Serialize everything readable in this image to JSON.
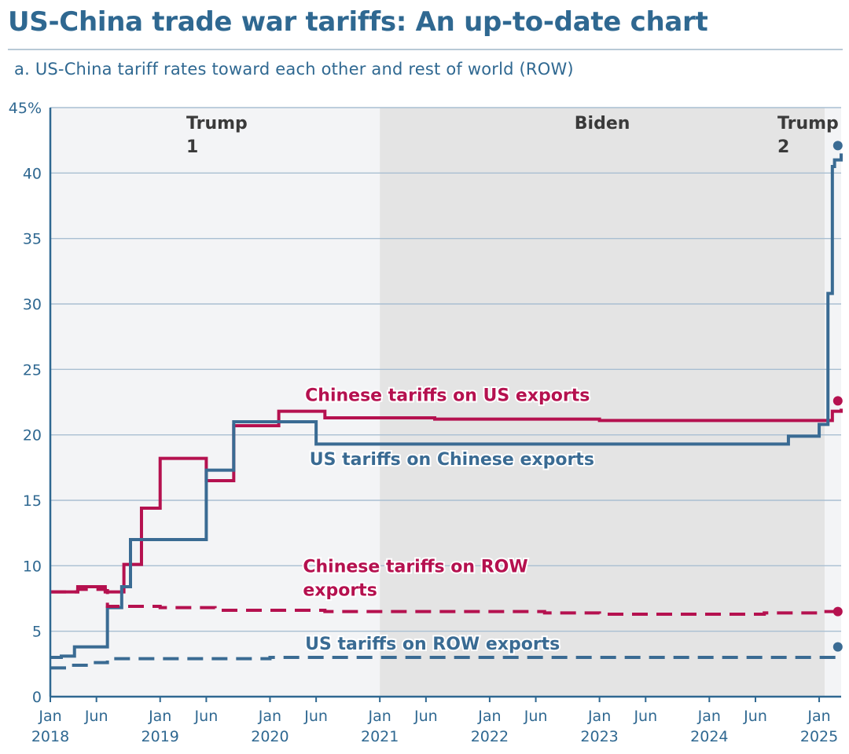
{
  "header": {
    "title": "US-China trade war tariffs: An up-to-date chart",
    "subtitle": "a. US-China tariff rates toward each other and rest of world (ROW)"
  },
  "chart_data": {
    "type": "line",
    "title": "US-China trade war tariffs: An up-to-date chart",
    "subtitle": "a. US-China tariff rates toward each other and rest of world (ROW)",
    "xlabel": "",
    "ylabel": "",
    "x_unit": "years since Jan 2018",
    "xlim": [
      0,
      7.2
    ],
    "ylim": [
      0,
      45
    ],
    "y_ticks": [
      {
        "value": 0,
        "label": "0"
      },
      {
        "value": 5,
        "label": "5"
      },
      {
        "value": 10,
        "label": "10"
      },
      {
        "value": 15,
        "label": "15"
      },
      {
        "value": 20,
        "label": "20"
      },
      {
        "value": 25,
        "label": "25"
      },
      {
        "value": 30,
        "label": "30"
      },
      {
        "value": 35,
        "label": "35"
      },
      {
        "value": 40,
        "label": "40"
      },
      {
        "value": 45,
        "label": "45%"
      }
    ],
    "x_ticks": [
      {
        "value": 0,
        "month": "Jan",
        "year": "2018"
      },
      {
        "value": 0.42,
        "month": "Jun",
        "year": ""
      },
      {
        "value": 1,
        "month": "Jan",
        "year": "2019"
      },
      {
        "value": 1.42,
        "month": "Jun",
        "year": ""
      },
      {
        "value": 2,
        "month": "Jan",
        "year": "2020"
      },
      {
        "value": 2.42,
        "month": "Jun",
        "year": ""
      },
      {
        "value": 3,
        "month": "Jan",
        "year": "2021"
      },
      {
        "value": 3.42,
        "month": "Jun",
        "year": ""
      },
      {
        "value": 4,
        "month": "Jan",
        "year": "2022"
      },
      {
        "value": 4.42,
        "month": "Jun",
        "year": ""
      },
      {
        "value": 5,
        "month": "Jan",
        "year": "2023"
      },
      {
        "value": 5.42,
        "month": "Jun",
        "year": ""
      },
      {
        "value": 6,
        "month": "Jan",
        "year": "2024"
      },
      {
        "value": 6.42,
        "month": "Jun",
        "year": ""
      },
      {
        "value": 7,
        "month": "Jan",
        "year": "2025"
      }
    ],
    "periods": [
      {
        "name": "Trump 1",
        "lines": [
          "Trump",
          "1"
        ],
        "start": 0,
        "end": 3.0,
        "shade": "#f3f4f6"
      },
      {
        "name": "Biden",
        "lines": [
          "Biden"
        ],
        "start": 3.0,
        "end": 7.05,
        "shade": "#e4e4e4"
      },
      {
        "name": "Trump 2",
        "lines": [
          "Trump",
          "2"
        ],
        "start": 7.05,
        "end": 7.2,
        "shade": "#f3f4f6"
      }
    ],
    "series": [
      {
        "name": "Chinese tariffs on US exports",
        "color": "#b5114f",
        "style": "solid",
        "step": true,
        "x": [
          0,
          0.25,
          0.5,
          0.5,
          0.67,
          0.72,
          0.83,
          1.0,
          1.42,
          1.67,
          2.08,
          2.5,
          3.5,
          4.0,
          5.0,
          6.0,
          7.0,
          7.12,
          7.2
        ],
        "values": [
          8.0,
          8.4,
          8.3,
          8.0,
          10.1,
          10.1,
          14.4,
          18.2,
          16.5,
          20.7,
          21.8,
          21.3,
          21.2,
          21.2,
          21.1,
          21.1,
          21.1,
          21.8,
          22.0
        ],
        "end_point": {
          "x": 7.17,
          "value": 22.6
        }
      },
      {
        "name": "US tariffs on Chinese exports",
        "color": "#3a6b93",
        "style": "solid",
        "step": true,
        "x": [
          0,
          0.1,
          0.22,
          0.52,
          0.65,
          0.73,
          1.42,
          1.67,
          2.08,
          2.42,
          3.0,
          4.0,
          5.0,
          6.0,
          6.72,
          7.0,
          7.08,
          7.12,
          7.14,
          7.2
        ],
        "values": [
          3.0,
          3.1,
          3.8,
          6.8,
          8.4,
          12.0,
          17.3,
          21.0,
          21.0,
          19.3,
          19.3,
          19.3,
          19.3,
          19.3,
          19.9,
          20.8,
          30.8,
          40.5,
          41.0,
          41.5
        ],
        "end_point": {
          "x": 7.17,
          "value": 42.1
        }
      },
      {
        "name": "Chinese tariffs on ROW exports",
        "color": "#b5114f",
        "style": "dashed",
        "step": true,
        "x": [
          0,
          0.25,
          0.5,
          0.52,
          1.0,
          1.5,
          2.0,
          2.5,
          3.0,
          4.0,
          4.5,
          5.0,
          6.0,
          6.5,
          7.0,
          7.2
        ],
        "values": [
          8.0,
          8.2,
          8.1,
          6.9,
          6.8,
          6.6,
          6.6,
          6.5,
          6.5,
          6.5,
          6.4,
          6.3,
          6.3,
          6.4,
          6.5,
          6.5
        ],
        "end_point": {
          "x": 7.17,
          "value": 6.5
        }
      },
      {
        "name": "US tariffs on ROW exports",
        "color": "#3a6b93",
        "style": "dashed",
        "step": true,
        "x": [
          0,
          0.18,
          0.38,
          0.52,
          1.0,
          2.0,
          3.0,
          4.0,
          5.0,
          6.0,
          7.0,
          7.2
        ],
        "values": [
          2.2,
          2.4,
          2.6,
          2.9,
          2.9,
          3.0,
          3.0,
          3.0,
          3.0,
          3.0,
          3.0,
          3.0
        ],
        "end_point": {
          "x": 7.17,
          "value": 3.8
        }
      }
    ],
    "annotations": [
      {
        "lines": [
          "Chinese tariffs on US exports"
        ],
        "color": "#b5114f",
        "x": 2.32,
        "value": 22.6
      },
      {
        "lines": [
          "US tariffs on Chinese exports"
        ],
        "color": "#3a6b93",
        "x": 2.36,
        "value": 17.7
      },
      {
        "lines": [
          "Chinese tariffs on ROW",
          "exports"
        ],
        "color": "#b5114f",
        "x": 2.3,
        "value": 9.5
      },
      {
        "lines": [
          "US tariffs on ROW exports"
        ],
        "color": "#3a6b93",
        "x": 2.32,
        "value": 3.6
      }
    ],
    "grid": true,
    "legend": "none (direct labels on lines)"
  }
}
